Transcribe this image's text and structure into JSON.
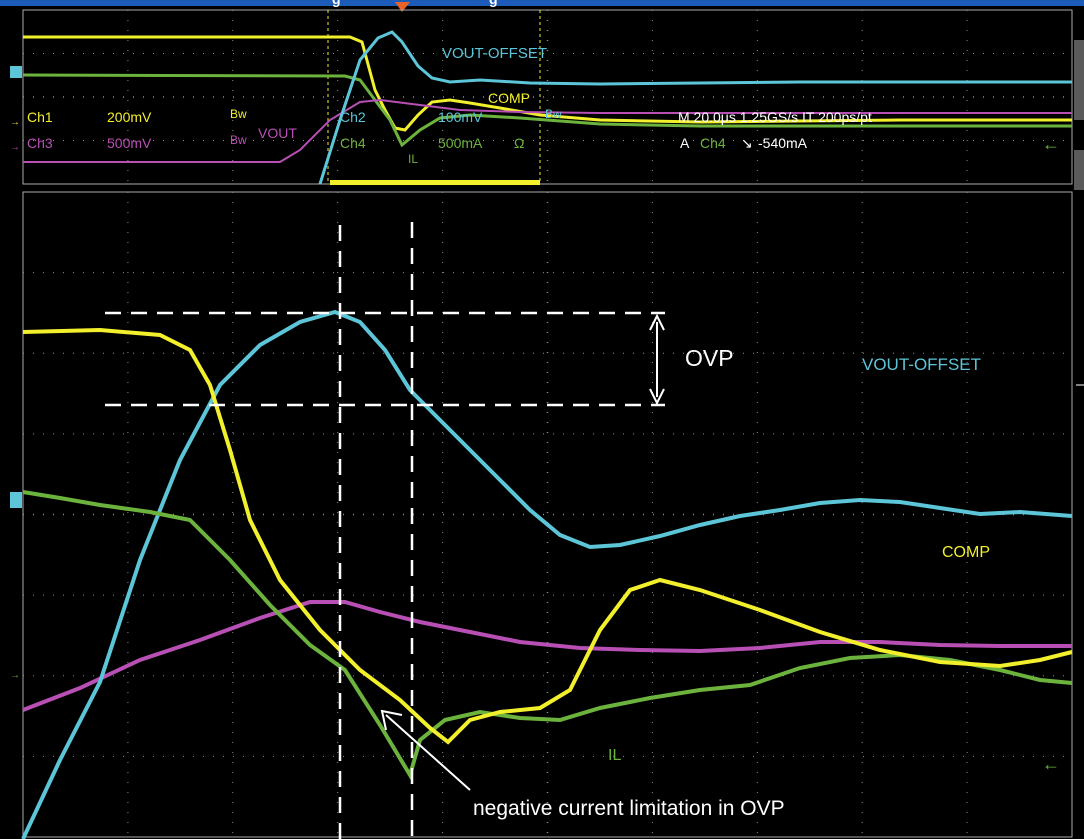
{
  "header": {
    "title_fragment_1": "g",
    "title_fragment_2": "g"
  },
  "overview": {
    "label_vout_offset": "VOUT-OFFSET",
    "label_comp": "COMP",
    "label_vout": "VOUT",
    "label_il": "IL",
    "ch1": {
      "name": "Ch1",
      "scale": "200mV",
      "bw": "Bw"
    },
    "ch2": {
      "name": "Ch2",
      "scale": "100mV",
      "bw": "Bw"
    },
    "ch3": {
      "name": "Ch3",
      "scale": "500mV",
      "bw": "Bw"
    },
    "ch4": {
      "name": "Ch4",
      "scale": "500mA",
      "unit": "Ω"
    },
    "timebase": "M 20.0μs  1.25GS/s    IT 200ps/pt",
    "trigger": {
      "prefix": "A",
      "channel": "Ch4",
      "slope": "↘",
      "level": "-540mA"
    }
  },
  "zoom": {
    "label_vout_offset": "VOUT-OFFSET",
    "label_comp": "COMP",
    "label_il": "IL",
    "ovp_label": "OVP",
    "annotation": "negative current limitation in OVP"
  },
  "colors": {
    "background": "#000000",
    "grid": "#8c8c8c",
    "ch1_yellow": "#f2ef2c",
    "ch2_cyan": "#5cc6d8",
    "ch3_magenta": "#b84fb4",
    "ch4_green": "#6cb33e",
    "header_blue": "#1d5bb8",
    "annotation": "#ffffff"
  }
}
